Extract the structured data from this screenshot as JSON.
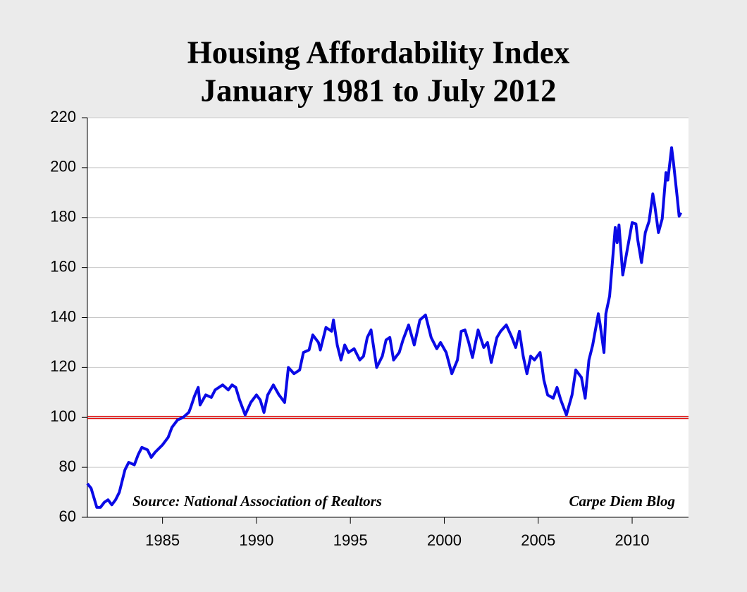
{
  "chart_data": {
    "type": "line",
    "title": "Housing Affordability Index",
    "subtitle": "January 1981 to July 2012",
    "annotations": [
      "Source: National Association of Realtors",
      "Carpe Diem Blog"
    ],
    "x": [
      1981.0,
      1981.2,
      1981.5,
      1981.7,
      1981.9,
      1982.1,
      1982.3,
      1982.5,
      1982.7,
      1983.0,
      1983.2,
      1983.5,
      1983.7,
      1983.9,
      1984.2,
      1984.4,
      1984.6,
      1985.0,
      1985.3,
      1985.5,
      1985.8,
      1986.1,
      1986.4,
      1986.5,
      1986.7,
      1986.9,
      1987.0,
      1987.3,
      1987.6,
      1987.8,
      1988.2,
      1988.5,
      1988.7,
      1988.9,
      1989.1,
      1989.4,
      1989.7,
      1990.0,
      1990.2,
      1990.4,
      1990.6,
      1990.9,
      1991.2,
      1991.5,
      1991.7,
      1992.0,
      1992.3,
      1992.5,
      1992.8,
      1993.0,
      1993.3,
      1993.4,
      1993.7,
      1994.0,
      1994.1,
      1994.3,
      1994.5,
      1994.7,
      1994.9,
      1995.2,
      1995.5,
      1995.7,
      1995.9,
      1996.1,
      1996.4,
      1996.7,
      1996.9,
      1997.1,
      1997.3,
      1997.6,
      1997.8,
      1998.1,
      1998.4,
      1998.7,
      1999.0,
      1999.3,
      1999.6,
      1999.8,
      2000.1,
      2000.4,
      2000.7,
      2000.9,
      2001.1,
      2001.3,
      2001.5,
      2001.8,
      2002.1,
      2002.3,
      2002.5,
      2002.8,
      2003.0,
      2003.3,
      2003.6,
      2003.8,
      2004.0,
      2004.2,
      2004.4,
      2004.6,
      2004.8,
      2005.1,
      2005.3,
      2005.5,
      2005.8,
      2006.0,
      2006.2,
      2006.5,
      2006.8,
      2007.0,
      2007.3,
      2007.5,
      2007.7,
      2007.9,
      2008.2,
      2008.3,
      2008.5,
      2008.6,
      2008.8,
      2009.1,
      2009.2,
      2009.3,
      2009.5,
      2009.7,
      2010.0,
      2010.2,
      2010.3,
      2010.5,
      2010.7,
      2010.9,
      2011.1,
      2011.2,
      2011.4,
      2011.6,
      2011.8,
      2011.9,
      2012.1,
      2012.2,
      2012.4,
      2012.5,
      2012.6
    ],
    "series": [
      {
        "name": "Housing Affordability Index",
        "color": "#0a0ae6",
        "values": [
          73.5,
          71.6,
          64,
          64,
          66,
          67,
          65,
          67,
          70,
          79,
          82,
          81,
          85,
          88,
          87,
          84,
          86,
          89,
          92,
          96,
          99,
          100,
          102,
          104,
          108.5,
          112,
          105,
          109,
          108,
          111,
          113,
          111,
          113,
          112,
          107,
          101,
          106,
          109,
          107,
          102,
          109,
          113,
          109,
          106,
          120,
          117.5,
          119,
          126,
          127,
          133,
          130,
          127,
          136,
          134.5,
          139,
          129,
          123,
          129,
          126,
          127.5,
          123,
          124.5,
          132,
          135,
          120,
          124.5,
          131,
          132,
          123,
          126,
          131,
          137,
          129,
          139,
          141,
          132,
          127.5,
          130,
          126,
          117.5,
          123,
          134.5,
          135,
          130,
          124,
          135,
          128,
          130,
          122,
          132,
          134.5,
          137,
          132,
          128,
          134.5,
          124.5,
          117.5,
          124.5,
          123,
          126,
          115,
          109,
          107.7,
          112,
          107,
          101,
          109,
          119,
          116,
          107.7,
          123,
          129,
          141.5,
          137,
          126,
          141.5,
          148.6,
          176,
          170,
          177,
          157,
          165.5,
          178,
          177.5,
          171,
          162,
          174,
          178.5,
          189.5,
          185,
          174,
          179.5,
          198,
          195,
          208,
          202,
          188,
          180.6,
          182
        ]
      }
    ],
    "reference_line": {
      "value": 100,
      "color": "#e00000"
    },
    "xlim": [
      1981,
      2013
    ],
    "xticks": [
      1985,
      1990,
      1995,
      2000,
      2005,
      2010
    ],
    "ylim": [
      60,
      220
    ],
    "yticks": [
      60,
      80,
      100,
      120,
      140,
      160,
      180,
      200,
      220
    ],
    "grid": true
  }
}
